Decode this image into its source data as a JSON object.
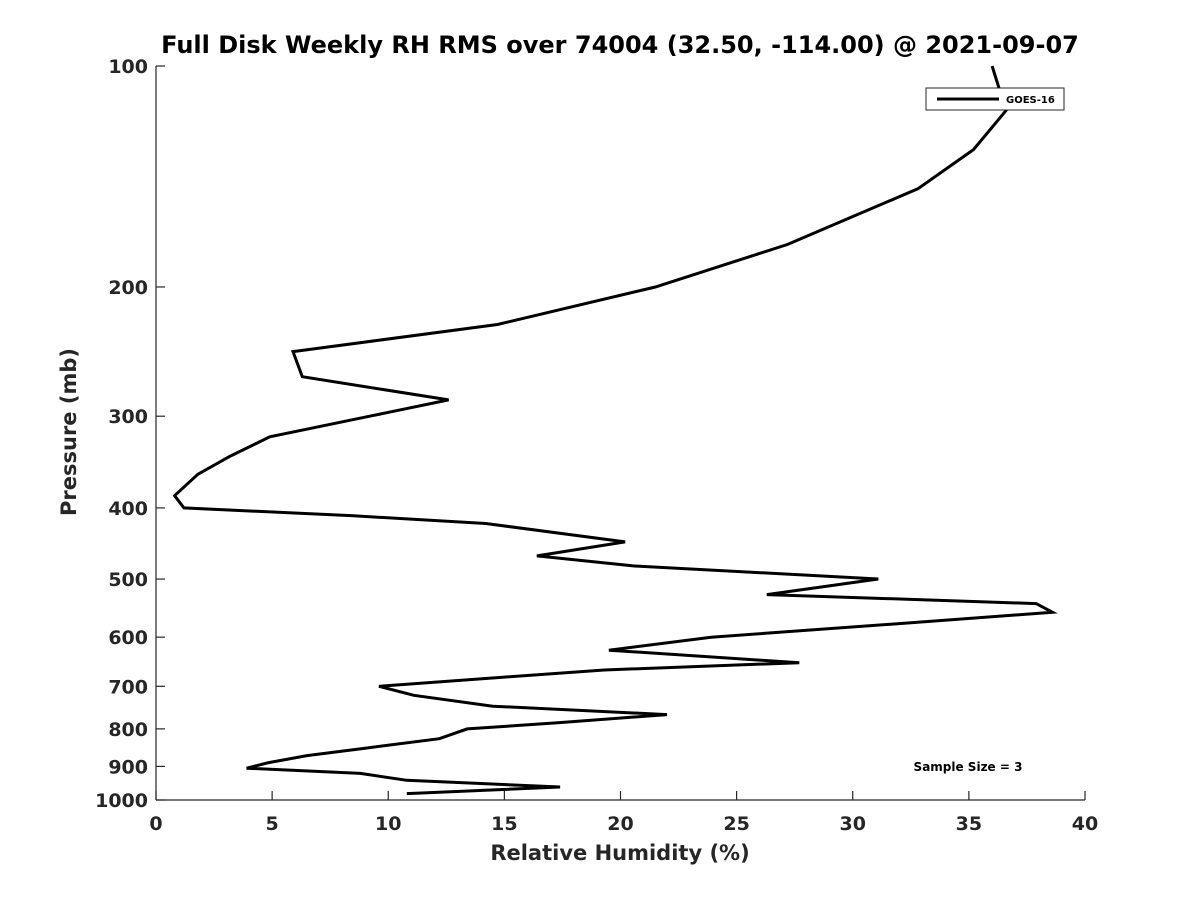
{
  "chart_data": {
    "type": "line",
    "title": "Full Disk Weekly RH RMS over 74004 (32.50, -114.00) @ 2021-09-07",
    "xlabel": "Relative Humidity (%)",
    "ylabel": "Pressure (mb)",
    "xlim": [
      0,
      40
    ],
    "ylim": [
      100,
      1000
    ],
    "y_scale": "log",
    "y_reversed": true,
    "xticks": [
      0,
      5,
      10,
      15,
      20,
      25,
      30,
      35,
      40
    ],
    "yticks": [
      100,
      200,
      300,
      400,
      500,
      600,
      700,
      800,
      900,
      1000
    ],
    "grid": false,
    "legend_position": "top-right",
    "annotation": "Sample Size = 3",
    "series": [
      {
        "name": "GOES-16",
        "color": "#000000",
        "points": [
          [
            36.0,
            100
          ],
          [
            36.6,
            115
          ],
          [
            35.2,
            130
          ],
          [
            32.8,
            147
          ],
          [
            27.2,
            175
          ],
          [
            21.5,
            200
          ],
          [
            14.7,
            225
          ],
          [
            5.9,
            245
          ],
          [
            6.3,
            265
          ],
          [
            12.6,
            285
          ],
          [
            9.2,
            300
          ],
          [
            4.9,
            320
          ],
          [
            3.2,
            340
          ],
          [
            1.8,
            360
          ],
          [
            0.8,
            385
          ],
          [
            1.2,
            400
          ],
          [
            8.5,
            410
          ],
          [
            14.2,
            420
          ],
          [
            20.2,
            445
          ],
          [
            16.4,
            465
          ],
          [
            20.6,
            480
          ],
          [
            31.1,
            500
          ],
          [
            26.3,
            525
          ],
          [
            37.9,
            540
          ],
          [
            38.6,
            555
          ],
          [
            32.0,
            575
          ],
          [
            23.9,
            600
          ],
          [
            19.5,
            625
          ],
          [
            27.7,
            650
          ],
          [
            19.3,
            665
          ],
          [
            15.0,
            680
          ],
          [
            9.6,
            700
          ],
          [
            11.1,
            720
          ],
          [
            14.5,
            745
          ],
          [
            22.0,
            765
          ],
          [
            17.3,
            785
          ],
          [
            13.4,
            800
          ],
          [
            12.2,
            825
          ],
          [
            9.0,
            850
          ],
          [
            6.5,
            870
          ],
          [
            4.8,
            890
          ],
          [
            3.9,
            905
          ],
          [
            8.8,
            920
          ],
          [
            10.8,
            940
          ],
          [
            17.4,
            960
          ],
          [
            10.8,
            980
          ]
        ]
      }
    ]
  }
}
